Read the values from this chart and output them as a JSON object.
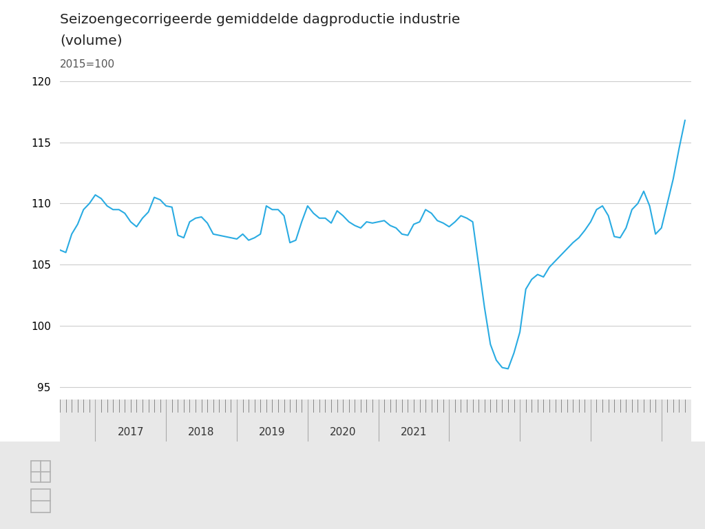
{
  "title_line1": "Seizoengecorrigeerde gemiddelde dagproductie industrie",
  "title_line2": "(volume)",
  "subtitle": "2015=100",
  "line_color": "#29ABE2",
  "background_color": "#ffffff",
  "ruler_background": "#e8e8e8",
  "bottom_background": "#e8e8e8",
  "grid_color": "#cccccc",
  "ylim": [
    94,
    121
  ],
  "yticks": [
    95,
    100,
    105,
    110,
    115,
    120
  ],
  "x_labels": [
    "2017",
    "2018",
    "2019",
    "2020",
    "2021"
  ],
  "data_x": [
    0,
    1,
    2,
    3,
    4,
    5,
    6,
    7,
    8,
    9,
    10,
    11,
    12,
    13,
    14,
    15,
    16,
    17,
    18,
    19,
    20,
    21,
    22,
    23,
    24,
    25,
    26,
    27,
    28,
    29,
    30,
    31,
    32,
    33,
    34,
    35,
    36,
    37,
    38,
    39,
    40,
    41,
    42,
    43,
    44,
    45,
    46,
    47,
    48,
    49,
    50,
    51,
    52,
    53,
    54,
    55,
    56,
    57,
    58,
    59,
    60,
    61,
    62,
    63,
    64,
    65,
    66,
    67,
    68,
    69,
    70,
    71,
    72,
    73,
    74,
    75,
    76,
    77,
    78,
    79,
    80,
    81,
    82,
    83,
    84,
    85,
    86,
    87,
    88,
    89,
    90,
    91,
    92,
    93,
    94,
    95,
    96,
    97,
    98,
    99,
    100,
    101,
    102,
    103,
    104,
    105,
    106
  ],
  "data_y": [
    106.2,
    106.0,
    107.5,
    108.3,
    109.5,
    110.0,
    110.7,
    110.4,
    109.8,
    109.5,
    109.5,
    109.2,
    108.5,
    108.1,
    108.8,
    109.3,
    110.5,
    110.3,
    109.8,
    109.7,
    107.4,
    107.2,
    108.5,
    108.8,
    108.9,
    108.4,
    107.5,
    107.4,
    107.3,
    107.2,
    107.1,
    107.5,
    107.0,
    107.2,
    107.5,
    109.8,
    109.5,
    109.5,
    109.0,
    106.8,
    107.0,
    108.5,
    109.8,
    109.2,
    108.8,
    108.8,
    108.4,
    109.4,
    109.0,
    108.5,
    108.2,
    108.0,
    108.5,
    108.4,
    108.5,
    108.6,
    108.2,
    108.0,
    107.5,
    107.4,
    108.3,
    108.5,
    109.5,
    109.2,
    108.6,
    108.4,
    108.1,
    108.5,
    109.0,
    108.8,
    108.5,
    105.0,
    101.5,
    98.5,
    97.2,
    96.6,
    96.5,
    97.8,
    99.5,
    103.0,
    103.8,
    104.2,
    104.0,
    104.8,
    105.3,
    105.8,
    106.3,
    106.8,
    107.2,
    107.8,
    108.5,
    109.5,
    109.8,
    109.0,
    107.3,
    107.2,
    108.0,
    109.5,
    110.0,
    111.0,
    109.8,
    107.5,
    108.0,
    110.0,
    112.0,
    114.5,
    116.8
  ],
  "n_months": 107,
  "xlim_min": 0,
  "xlim_max": 107,
  "year_boundaries": [
    6,
    18,
    30,
    42,
    54,
    66,
    78,
    90,
    102
  ],
  "year_label_centers": [
    12,
    24,
    36,
    48,
    60,
    72,
    84,
    96
  ],
  "ruler_year_labels": [
    "2017",
    "2018",
    "2019",
    "2020",
    "2021"
  ],
  "ruler_year_positions": [
    12,
    24,
    36,
    54,
    66
  ],
  "separator_positions": [
    18,
    30,
    42,
    66,
    78
  ]
}
